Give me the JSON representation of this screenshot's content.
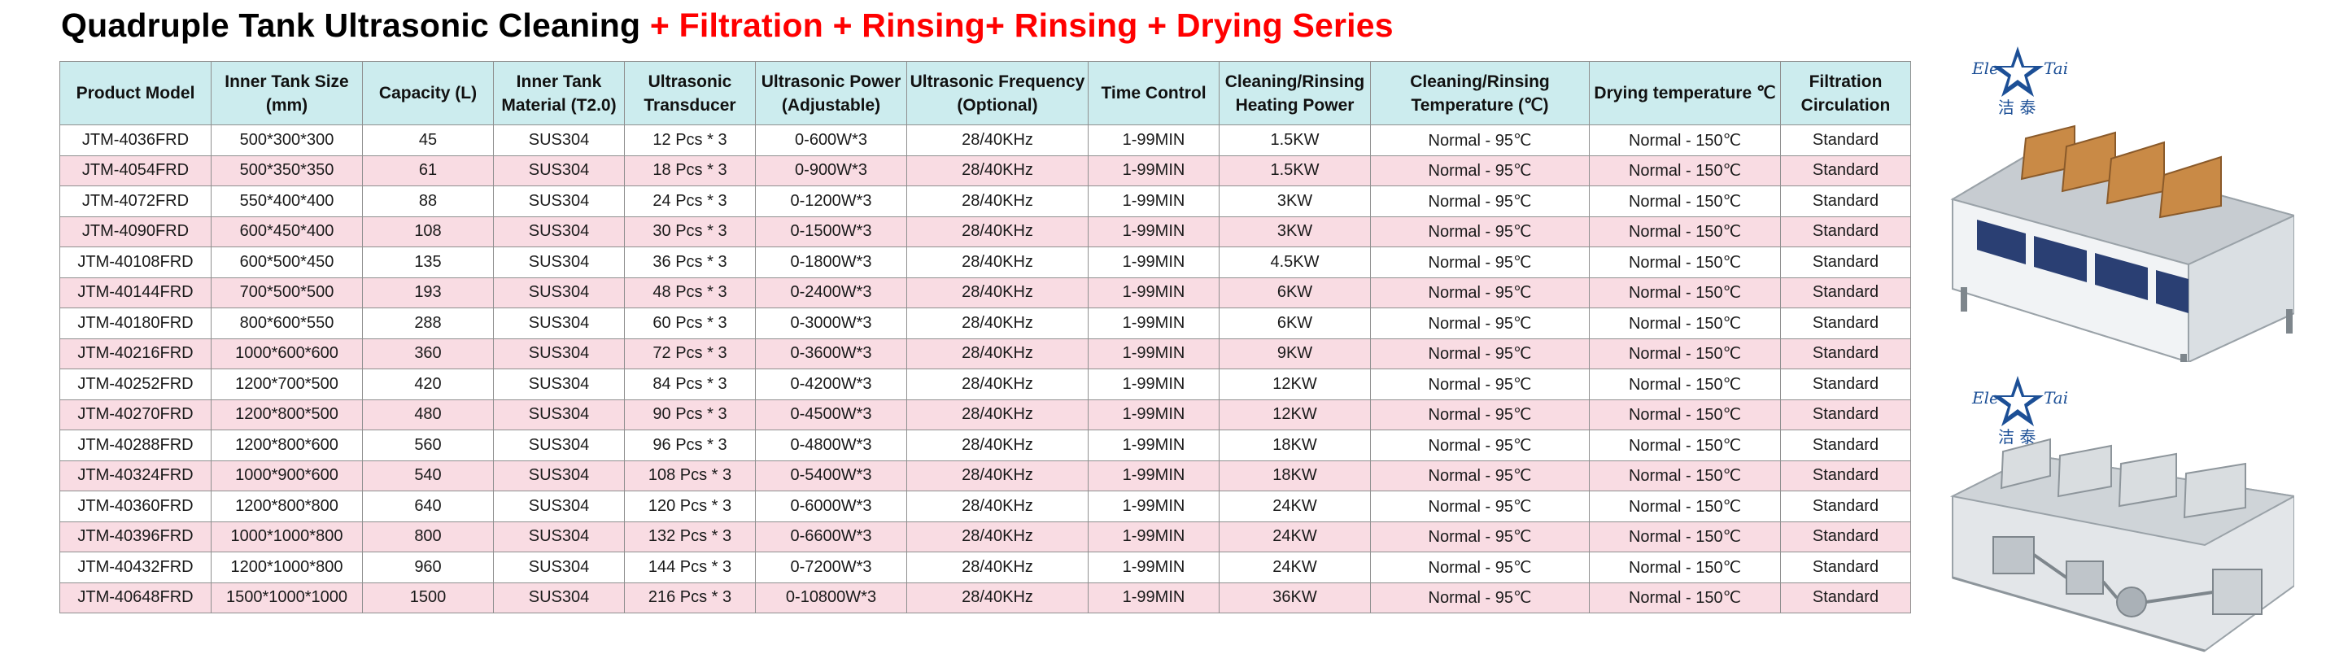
{
  "title": {
    "black_part": "Quadruple Tank Ultrasonic Cleaning",
    "red_part": " + Filtration + Rinsing+ Rinsing + Drying Series"
  },
  "logo": {
    "left_text": "Ele",
    "right_text": "Tai",
    "chinese": "洁 泰"
  },
  "colors": {
    "header_bg": "#ccecee",
    "row_alt": "#f9dce3",
    "title_red": "#ff0000"
  },
  "table": {
    "headers": [
      "Product Model",
      "Inner Tank Size (mm)",
      "Capacity (L)",
      "Inner Tank Material (T2.0)",
      "Ultrasonic Transducer",
      "Ultrasonic Power (Adjustable)",
      "Ultrasonic Frequency (Optional)",
      "Time Control",
      "Cleaning/Rinsing Heating Power",
      "Cleaning/Rinsing Temperature (℃)",
      "Drying temperature ℃",
      "Filtration Circulation"
    ],
    "rows": [
      [
        "JTM-4036FRD",
        "500*300*300",
        "45",
        "SUS304",
        "12 Pcs * 3",
        "0-600W*3",
        "28/40KHz",
        "1-99MIN",
        "1.5KW",
        "Normal - 95℃",
        "Normal - 150℃",
        "Standard"
      ],
      [
        "JTM-4054FRD",
        "500*350*350",
        "61",
        "SUS304",
        "18 Pcs * 3",
        "0-900W*3",
        "28/40KHz",
        "1-99MIN",
        "1.5KW",
        "Normal - 95℃",
        "Normal - 150℃",
        "Standard"
      ],
      [
        "JTM-4072FRD",
        "550*400*400",
        "88",
        "SUS304",
        "24 Pcs * 3",
        "0-1200W*3",
        "28/40KHz",
        "1-99MIN",
        "3KW",
        "Normal - 95℃",
        "Normal - 150℃",
        "Standard"
      ],
      [
        "JTM-4090FRD",
        "600*450*400",
        "108",
        "SUS304",
        "30 Pcs * 3",
        "0-1500W*3",
        "28/40KHz",
        "1-99MIN",
        "3KW",
        "Normal - 95℃",
        "Normal - 150℃",
        "Standard"
      ],
      [
        "JTM-40108FRD",
        "600*500*450",
        "135",
        "SUS304",
        "36 Pcs * 3",
        "0-1800W*3",
        "28/40KHz",
        "1-99MIN",
        "4.5KW",
        "Normal - 95℃",
        "Normal - 150℃",
        "Standard"
      ],
      [
        "JTM-40144FRD",
        "700*500*500",
        "193",
        "SUS304",
        "48 Pcs * 3",
        "0-2400W*3",
        "28/40KHz",
        "1-99MIN",
        "6KW",
        "Normal - 95℃",
        "Normal - 150℃",
        "Standard"
      ],
      [
        "JTM-40180FRD",
        "800*600*550",
        "288",
        "SUS304",
        "60 Pcs * 3",
        "0-3000W*3",
        "28/40KHz",
        "1-99MIN",
        "6KW",
        "Normal - 95℃",
        "Normal - 150℃",
        "Standard"
      ],
      [
        "JTM-40216FRD",
        "1000*600*600",
        "360",
        "SUS304",
        "72 Pcs * 3",
        "0-3600W*3",
        "28/40KHz",
        "1-99MIN",
        "9KW",
        "Normal - 95℃",
        "Normal - 150℃",
        "Standard"
      ],
      [
        "JTM-40252FRD",
        "1200*700*500",
        "420",
        "SUS304",
        "84 Pcs * 3",
        "0-4200W*3",
        "28/40KHz",
        "1-99MIN",
        "12KW",
        "Normal - 95℃",
        "Normal - 150℃",
        "Standard"
      ],
      [
        "JTM-40270FRD",
        "1200*800*500",
        "480",
        "SUS304",
        "90 Pcs * 3",
        "0-4500W*3",
        "28/40KHz",
        "1-99MIN",
        "12KW",
        "Normal - 95℃",
        "Normal - 150℃",
        "Standard"
      ],
      [
        "JTM-40288FRD",
        "1200*800*600",
        "560",
        "SUS304",
        "96 Pcs * 3",
        "0-4800W*3",
        "28/40KHz",
        "1-99MIN",
        "18KW",
        "Normal - 95℃",
        "Normal - 150℃",
        "Standard"
      ],
      [
        "JTM-40324FRD",
        "1000*900*600",
        "540",
        "SUS304",
        "108 Pcs * 3",
        "0-5400W*3",
        "28/40KHz",
        "1-99MIN",
        "18KW",
        "Normal - 95℃",
        "Normal - 150℃",
        "Standard"
      ],
      [
        "JTM-40360FRD",
        "1200*800*800",
        "640",
        "SUS304",
        "120 Pcs * 3",
        "0-6000W*3",
        "28/40KHz",
        "1-99MIN",
        "24KW",
        "Normal - 95℃",
        "Normal - 150℃",
        "Standard"
      ],
      [
        "JTM-40396FRD",
        "1000*1000*800",
        "800",
        "SUS304",
        "132 Pcs * 3",
        "0-6600W*3",
        "28/40KHz",
        "1-99MIN",
        "24KW",
        "Normal - 95℃",
        "Normal - 150℃",
        "Standard"
      ],
      [
        "JTM-40432FRD",
        "1200*1000*800",
        "960",
        "SUS304",
        "144 Pcs * 3",
        "0-7200W*3",
        "28/40KHz",
        "1-99MIN",
        "24KW",
        "Normal - 95℃",
        "Normal - 150℃",
        "Standard"
      ],
      [
        "JTM-40648FRD",
        "1500*1000*1000",
        "1500",
        "SUS304",
        "216 Pcs * 3",
        "0-10800W*3",
        "28/40KHz",
        "1-99MIN",
        "36KW",
        "Normal - 95℃",
        "Normal - 150℃",
        "Standard"
      ]
    ]
  }
}
